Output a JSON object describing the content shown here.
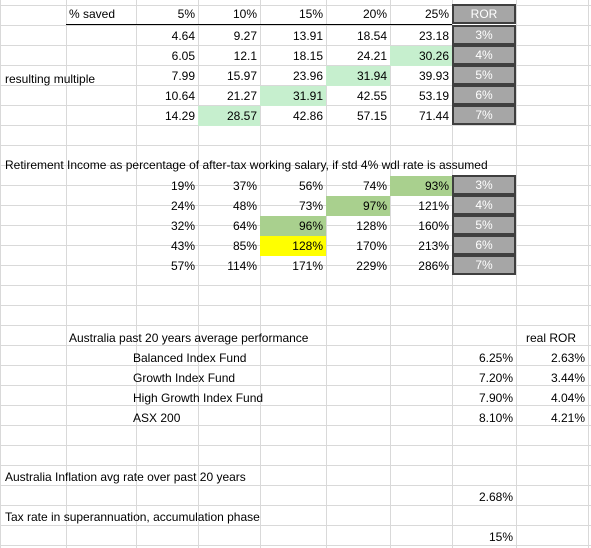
{
  "colors": {
    "green_light": "#c6efce",
    "green_mid": "#a9d08e",
    "yellow": "#ffff00",
    "ror_fill": "#a6a6a6",
    "ror_border": "#3f3f3f",
    "gridline": "#d9d9d9"
  },
  "table1": {
    "corner_label": "% saved",
    "headers": [
      "5%",
      "10%",
      "15%",
      "20%",
      "25%"
    ],
    "ror_header": "ROR",
    "row_label": "resulting multiple",
    "rows": [
      [
        "4.64",
        "9.27",
        "13.91",
        "18.54",
        "23.18"
      ],
      [
        "6.05",
        "12.1",
        "18.15",
        "24.21",
        "30.26"
      ],
      [
        "7.99",
        "15.97",
        "23.96",
        "31.94",
        "39.93"
      ],
      [
        "10.64",
        "21.27",
        "31.91",
        "42.55",
        "53.19"
      ],
      [
        "14.29",
        "28.57",
        "42.86",
        "57.15",
        "71.44"
      ]
    ],
    "ror": [
      "3%",
      "4%",
      "5%",
      "6%",
      "7%"
    ],
    "highlights": [
      [
        -1,
        -1,
        -1,
        -1,
        -1
      ],
      [
        -1,
        -1,
        -1,
        -1,
        4
      ],
      [
        -1,
        -1,
        -1,
        3,
        -1
      ],
      [
        -1,
        -1,
        2,
        -1,
        -1
      ],
      [
        -1,
        1,
        -1,
        -1,
        -1
      ]
    ]
  },
  "table2": {
    "title": "Retirement Income as percentage of after-tax working salary, if std 4% wdl rate is assumed",
    "rows": [
      [
        "19%",
        "37%",
        "56%",
        "74%",
        "93%"
      ],
      [
        "24%",
        "48%",
        "73%",
        "97%",
        "121%"
      ],
      [
        "32%",
        "64%",
        "96%",
        "128%",
        "160%"
      ],
      [
        "43%",
        "85%",
        "128%",
        "170%",
        "213%"
      ],
      [
        "57%",
        "114%",
        "171%",
        "229%",
        "286%"
      ]
    ],
    "ror": [
      "3%",
      "4%",
      "5%",
      "6%",
      "7%"
    ]
  },
  "australia": {
    "title": "Australia past 20 years average performance",
    "real_ror_header": "real ROR",
    "funds": [
      {
        "name": "Balanced Index Fund",
        "rate": "6.25%",
        "real": "2.63%"
      },
      {
        "name": "Growth Index Fund",
        "rate": "7.20%",
        "real": "3.44%"
      },
      {
        "name": "High Growth Index Fund",
        "rate": "7.90%",
        "real": "4.04%"
      },
      {
        "name": "ASX 200",
        "rate": "8.10%",
        "real": "4.21%"
      }
    ],
    "inflation_label": "Australia Inflation avg rate over past 20 years",
    "inflation_value": "2.68%",
    "tax_label": "Tax rate in superannuation, accumulation phase",
    "tax_value": "15%"
  }
}
